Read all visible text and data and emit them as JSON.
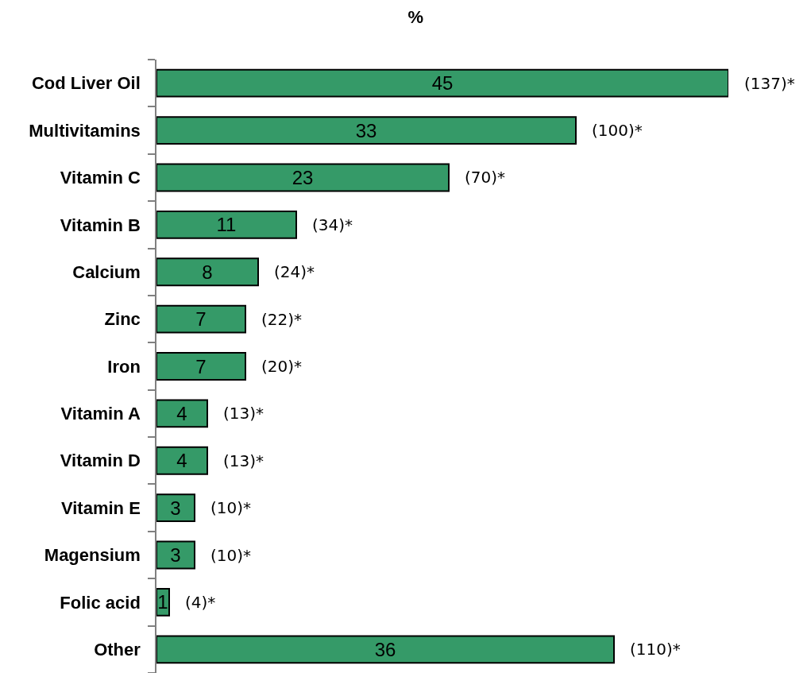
{
  "chart_data": {
    "type": "bar",
    "orientation": "horizontal",
    "title": "%",
    "categories": [
      "Cod Liver Oil",
      "Multivitamins",
      "Vitamin C",
      "Vitamin B",
      "Calcium",
      "Zinc",
      "Iron",
      "Vitamin A",
      "Vitamin D",
      "Vitamin E",
      "Magensium",
      "Folic acid",
      "Other"
    ],
    "values": [
      45,
      33,
      23,
      11,
      8,
      7,
      7,
      4,
      4,
      3,
      3,
      1,
      36
    ],
    "color": "#359a68",
    "data_labels": true,
    "annotations": [
      {
        "text": "(137)*",
        "x": 45,
        "y": "Cod Liver Oil"
      },
      {
        "text": "(100)*",
        "x": 33,
        "y": "Multivitamins"
      },
      {
        "text": "(70)*",
        "x": 23,
        "y": "Vitamin C"
      },
      {
        "text": "(34)*",
        "x": 11,
        "y": "Vitamin B"
      },
      {
        "text": "(24)*",
        "x": 8,
        "y": "Calcium"
      },
      {
        "text": "(22)*",
        "x": 7,
        "y": "Zinc"
      },
      {
        "text": "(20)*",
        "x": 7,
        "y": "Iron"
      },
      {
        "text": "(13)*",
        "x": 4,
        "y": "Vitamin A"
      },
      {
        "text": "(13)*",
        "x": 4,
        "y": "Vitamin D"
      },
      {
        "text": "(10)*",
        "x": 3,
        "y": "Vitamin E"
      },
      {
        "text": "(10)*",
        "x": 3,
        "y": "Magensium"
      },
      {
        "text": "(4)*",
        "x": 1,
        "y": "Folic acid"
      },
      {
        "text": "(110)*",
        "x": 36,
        "y": "Other"
      }
    ]
  }
}
